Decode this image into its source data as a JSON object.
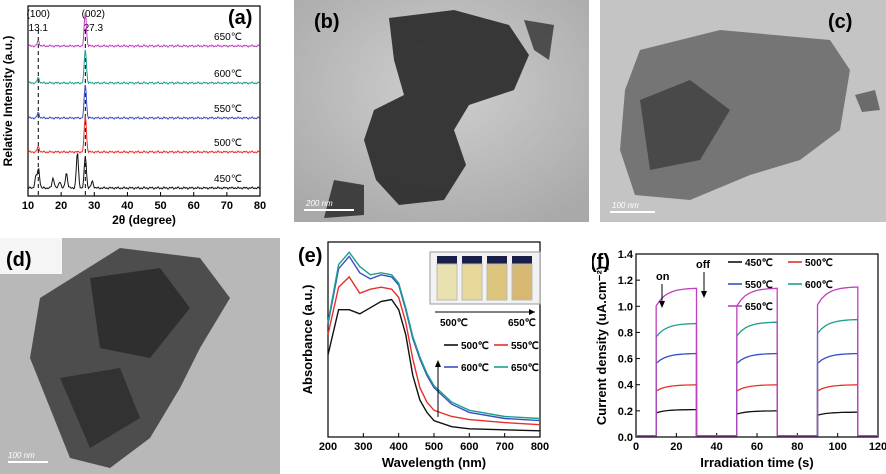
{
  "panels": {
    "a": {
      "label": "(a)",
      "ylabel": "Relative Intensity (a.u.)",
      "xlabel": "2θ (degree)",
      "peak_labels": [
        {
          "hkl": "(100)",
          "pos": "13.1"
        },
        {
          "hkl": "(002)",
          "pos": "27.3"
        }
      ],
      "temps": [
        "650℃",
        "600℃",
        "550℃",
        "500℃",
        "450℃"
      ],
      "colors": [
        "#c040c0",
        "#1f9e8f",
        "#3a4fc4",
        "#e8302a",
        "#111111"
      ]
    },
    "b": {
      "label": "(b)",
      "scale": "200 nm"
    },
    "c": {
      "label": "(c)",
      "scale": "100 nm"
    },
    "d": {
      "label": "(d)",
      "scale": "100 nm"
    },
    "e": {
      "label": "(e)",
      "ylabel": "Absorbance (a.u.)",
      "xlabel": "Wavelength (nm)",
      "inset_left": "500℃",
      "inset_right": "650℃",
      "legend": [
        "500℃",
        "550℃",
        "600℃",
        "650℃"
      ],
      "colors": [
        "#111111",
        "#e8302a",
        "#3a4fc4",
        "#1f9e8f"
      ]
    },
    "f": {
      "label": "(f)",
      "ylabel": "Current density (uA.cm⁻²)",
      "xlabel": "Irradiation time (s)",
      "on_label": "on",
      "off_label": "off",
      "legend": [
        "450℃",
        "500℃",
        "550℃",
        "600℃",
        "650℃"
      ],
      "colors": [
        "#111111",
        "#e8302a",
        "#3a4fc4",
        "#1f9e8f",
        "#c040c0"
      ]
    }
  },
  "chart_data": [
    {
      "panel": "a",
      "type": "line",
      "xlabel": "2θ (degree)",
      "ylabel": "Relative Intensity (a.u.)",
      "xlim": [
        10,
        80
      ],
      "xticks": [
        10,
        20,
        30,
        40,
        50,
        60,
        70,
        80
      ],
      "annotations": [
        "(100) 13.1",
        "(002) 27.3"
      ],
      "series": [
        {
          "name": "650℃",
          "offset": 4,
          "peaks": [
            {
              "x": 13.1,
              "h": 0.15
            },
            {
              "x": 27.3,
              "h": 1.0
            }
          ]
        },
        {
          "name": "600℃",
          "offset": 3,
          "peaks": [
            {
              "x": 13.1,
              "h": 0.15
            },
            {
              "x": 27.3,
              "h": 1.0
            }
          ]
        },
        {
          "name": "550℃",
          "offset": 2,
          "peaks": [
            {
              "x": 13.1,
              "h": 0.15
            },
            {
              "x": 27.3,
              "h": 1.0
            }
          ]
        },
        {
          "name": "500℃",
          "offset": 1,
          "peaks": [
            {
              "x": 13.1,
              "h": 0.15
            },
            {
              "x": 27.3,
              "h": 1.1
            }
          ]
        },
        {
          "name": "450℃",
          "offset": 0,
          "peaks": [
            {
              "x": 12.4,
              "h": 0.35
            },
            {
              "x": 13.2,
              "h": 0.55
            },
            {
              "x": 17.6,
              "h": 0.3
            },
            {
              "x": 19.6,
              "h": 0.2
            },
            {
              "x": 21.6,
              "h": 0.45
            },
            {
              "x": 24.9,
              "h": 1.05
            },
            {
              "x": 27.3,
              "h": 0.95
            },
            {
              "x": 29.4,
              "h": 0.2
            }
          ]
        }
      ]
    },
    {
      "panel": "e",
      "type": "line",
      "xlabel": "Wavelength (nm)",
      "ylabel": "Absorbance (a.u.)",
      "xlim": [
        200,
        800
      ],
      "xticks": [
        200,
        300,
        400,
        500,
        600,
        700,
        800
      ],
      "x": [
        200,
        230,
        260,
        290,
        320,
        350,
        380,
        400,
        420,
        440,
        460,
        480,
        500,
        550,
        600,
        700,
        800
      ],
      "series": [
        {
          "name": "500℃",
          "values": [
            0.4,
            0.62,
            0.62,
            0.6,
            0.63,
            0.66,
            0.67,
            0.62,
            0.5,
            0.3,
            0.18,
            0.12,
            0.08,
            0.05,
            0.04,
            0.035,
            0.03
          ]
        },
        {
          "name": "550℃",
          "values": [
            0.5,
            0.73,
            0.78,
            0.7,
            0.72,
            0.73,
            0.72,
            0.68,
            0.56,
            0.38,
            0.24,
            0.17,
            0.13,
            0.1,
            0.085,
            0.07,
            0.06
          ]
        },
        {
          "name": "600℃",
          "values": [
            0.55,
            0.82,
            0.88,
            0.8,
            0.77,
            0.79,
            0.78,
            0.74,
            0.62,
            0.48,
            0.38,
            0.3,
            0.24,
            0.16,
            0.12,
            0.09,
            0.08
          ]
        },
        {
          "name": "650℃",
          "values": [
            0.56,
            0.84,
            0.9,
            0.83,
            0.79,
            0.8,
            0.79,
            0.75,
            0.63,
            0.49,
            0.39,
            0.31,
            0.25,
            0.17,
            0.13,
            0.1,
            0.09
          ]
        }
      ]
    },
    {
      "panel": "f",
      "type": "line",
      "xlabel": "Irradiation time (s)",
      "ylabel": "Current density (uA.cm⁻²)",
      "xlim": [
        0,
        120
      ],
      "ylim": [
        0,
        1.4
      ],
      "xticks": [
        0,
        10,
        20,
        30,
        40,
        50,
        60,
        70,
        80,
        90,
        100,
        110,
        120
      ],
      "yticks": [
        0.0,
        0.2,
        0.4,
        0.6,
        0.8,
        1.0,
        1.2,
        1.4
      ],
      "on_intervals": [
        [
          10,
          30
        ],
        [
          50,
          70
        ],
        [
          90,
          110
        ]
      ],
      "series": [
        {
          "name": "450℃",
          "levels": [
            0.21,
            0.2,
            0.19
          ]
        },
        {
          "name": "500℃",
          "levels": [
            0.4,
            0.4,
            0.4
          ]
        },
        {
          "name": "550℃",
          "levels": [
            0.64,
            0.64,
            0.64
          ]
        },
        {
          "name": "600℃",
          "levels": [
            0.87,
            0.88,
            0.9
          ]
        },
        {
          "name": "650℃",
          "levels": [
            1.14,
            1.14,
            1.15
          ]
        }
      ]
    }
  ]
}
